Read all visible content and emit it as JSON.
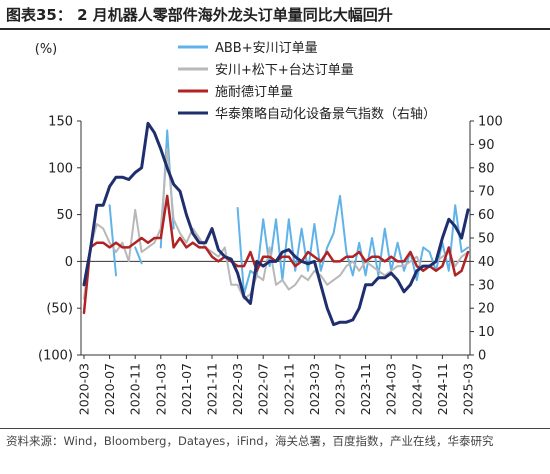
{
  "figure": {
    "title": "图表35：  2 月机器人零部件海外龙头订单量同比大幅回升",
    "source": "资料来源：Wind，Bloomberg，Datayes，iFind，海关总署，百度指数，产业在线，华泰研究"
  },
  "chart_data": {
    "type": "line",
    "y_left_label": "(%)",
    "y_left_ticks": [
      "150",
      "100",
      "50",
      "0",
      "(50)",
      "(100)"
    ],
    "y_left_lim": [
      -100,
      150
    ],
    "y_right_ticks": [
      "100",
      "90",
      "80",
      "70",
      "60",
      "50",
      "40",
      "30",
      "20",
      "10",
      "0"
    ],
    "y_right_lim": [
      0,
      100
    ],
    "x_ticks": [
      "2020-03",
      "2020-07",
      "2020-11",
      "2021-03",
      "2021-07",
      "2021-11",
      "2022-03",
      "2022-07",
      "2022-11",
      "2023-03",
      "2023-07",
      "2023-11",
      "2024-03",
      "2024-07",
      "2024-11",
      "2025-03"
    ],
    "legend_position": "top-right",
    "x": [
      "2020-03",
      "2020-04",
      "2020-05",
      "2020-06",
      "2020-07",
      "2020-08",
      "2020-09",
      "2020-10",
      "2020-11",
      "2020-12",
      "2021-01",
      "2021-02",
      "2021-03",
      "2021-04",
      "2021-05",
      "2021-06",
      "2021-07",
      "2021-08",
      "2021-09",
      "2021-10",
      "2021-11",
      "2021-12",
      "2022-01",
      "2022-02",
      "2022-03",
      "2022-04",
      "2022-05",
      "2022-06",
      "2022-07",
      "2022-08",
      "2022-09",
      "2022-10",
      "2022-11",
      "2022-12",
      "2023-01",
      "2023-02",
      "2023-03",
      "2023-04",
      "2023-05",
      "2023-06",
      "2023-07",
      "2023-08",
      "2023-09",
      "2023-10",
      "2023-11",
      "2023-12",
      "2024-01",
      "2024-02",
      "2024-03",
      "2024-04",
      "2024-05",
      "2024-06",
      "2024-07",
      "2024-08",
      "2024-09",
      "2024-10",
      "2024-11",
      "2024-12",
      "2025-01",
      "2025-02",
      "2025-03"
    ],
    "series": [
      {
        "name": "ABB+安川订单量",
        "color": "#5fb3e8",
        "axis": "left",
        "width": 2,
        "values": [
          -30,
          null,
          null,
          null,
          60,
          -15,
          null,
          null,
          15,
          -2,
          null,
          null,
          15,
          140,
          35,
          null,
          null,
          -15,
          null,
          null,
          null,
          0,
          null,
          null,
          57,
          -35,
          -10,
          -15,
          45,
          -5,
          45,
          -20,
          45,
          -10,
          35,
          -10,
          40,
          -10,
          15,
          30,
          70,
          10,
          -15,
          20,
          -15,
          25,
          -15,
          35,
          -10,
          20,
          -10,
          10,
          -20,
          15,
          10,
          -10,
          20,
          -10,
          60,
          10,
          15
        ]
      },
      {
        "name": "安川+松下+台达订单量",
        "color": "#b8b8b8",
        "axis": "left",
        "width": 2,
        "values": [
          -40,
          15,
          40,
          35,
          20,
          10,
          20,
          0,
          55,
          10,
          15,
          20,
          35,
          120,
          45,
          30,
          20,
          35,
          25,
          15,
          10,
          5,
          15,
          -25,
          -25,
          -40,
          -35,
          -15,
          -20,
          15,
          -25,
          -20,
          -30,
          -25,
          -15,
          -20,
          -10,
          -15,
          -25,
          -20,
          -15,
          -5,
          0,
          -10,
          0,
          -5,
          -10,
          -15,
          -10,
          -5,
          -5,
          0,
          5,
          -10,
          -5,
          0,
          5,
          10,
          -5,
          5,
          10
        ]
      },
      {
        "name": "施耐德订单量",
        "color": "#b22222",
        "axis": "left",
        "width": 2.5,
        "values": [
          -55,
          15,
          20,
          20,
          15,
          20,
          15,
          15,
          20,
          25,
          20,
          25,
          25,
          70,
          15,
          25,
          15,
          20,
          15,
          15,
          5,
          0,
          5,
          0,
          -5,
          -5,
          10,
          -10,
          5,
          5,
          0,
          5,
          5,
          -5,
          0,
          10,
          5,
          0,
          10,
          0,
          0,
          5,
          5,
          10,
          0,
          5,
          5,
          0,
          5,
          0,
          0,
          10,
          -5,
          -10,
          -5,
          -10,
          -5,
          15,
          -15,
          -10,
          10
        ]
      },
      {
        "name": "华泰策略自动化设备景气指数（右轴）",
        "color": "#1f2f6e",
        "axis": "right",
        "width": 3,
        "values": [
          30,
          45,
          64,
          64,
          72,
          76,
          76,
          75,
          78,
          80,
          99,
          95,
          88,
          80,
          73,
          70,
          60,
          52,
          48,
          48,
          54,
          45,
          42,
          41,
          35,
          25,
          22,
          40,
          38,
          40,
          40,
          44,
          45,
          42,
          40,
          39,
          40,
          30,
          20,
          13,
          14,
          14,
          15,
          20,
          30,
          30,
          33,
          33,
          35,
          32,
          27,
          30,
          36,
          38,
          38,
          40,
          50,
          58,
          55,
          50,
          62
        ]
      }
    ]
  }
}
